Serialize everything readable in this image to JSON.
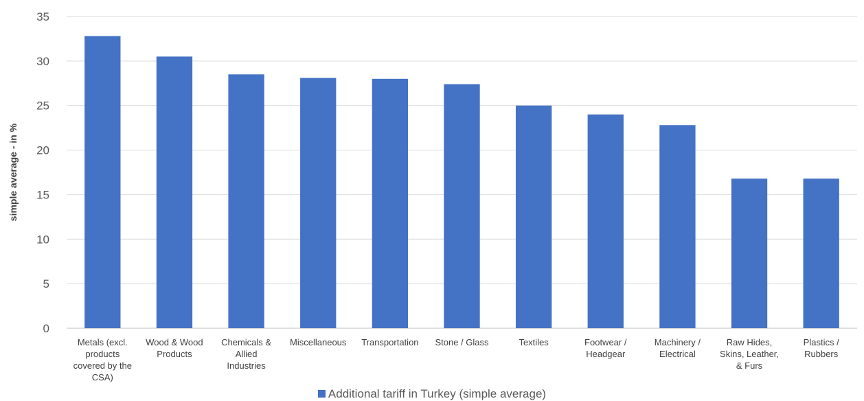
{
  "chart_data": {
    "type": "bar",
    "ylabel": "simple average - in %",
    "ylim": [
      0,
      35
    ],
    "yticks": [
      0,
      5,
      10,
      15,
      20,
      25,
      30,
      35
    ],
    "grid": true,
    "legend_position": "bottom",
    "bar_color": "#4472C4",
    "categories": [
      [
        "Metals (excl.",
        "products",
        "covered by the",
        "CSA)"
      ],
      [
        "Wood & Wood",
        "Products"
      ],
      [
        "Chemicals &",
        "Allied",
        "Industries"
      ],
      [
        "Miscellaneous"
      ],
      [
        "Transportation"
      ],
      [
        "Stone / Glass"
      ],
      [
        "Textiles"
      ],
      [
        "Footwear /",
        "Headgear"
      ],
      [
        "Machinery /",
        "Electrical"
      ],
      [
        "Raw Hides,",
        "Skins, Leather,",
        "& Furs"
      ],
      [
        "Plastics /",
        "Rubbers"
      ]
    ],
    "series": [
      {
        "name": "Additional tariff in Turkey (simple average)",
        "values": [
          32.8,
          30.5,
          28.5,
          28.1,
          28.0,
          27.4,
          25.0,
          24.0,
          22.8,
          16.8,
          16.8
        ]
      }
    ]
  }
}
